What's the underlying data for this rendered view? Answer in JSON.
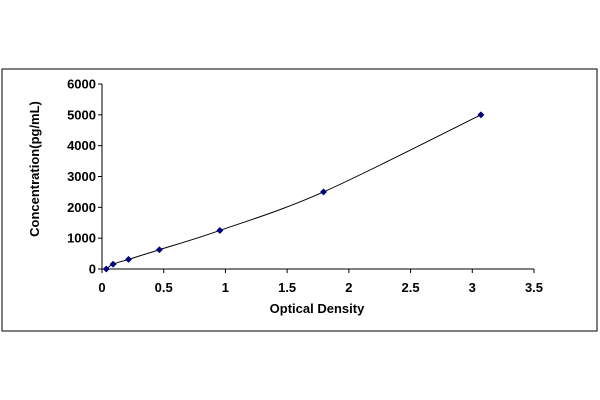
{
  "chart_data": {
    "type": "scatter",
    "title": "",
    "xlabel": "Optical Density",
    "ylabel": "Concentration(pg/mL)",
    "xlim": [
      0,
      3.5
    ],
    "ylim": [
      0,
      6000
    ],
    "x_ticks": [
      "0",
      "0.5",
      "1",
      "1.5",
      "2",
      "2.5",
      "3",
      "3.5"
    ],
    "y_ticks": [
      "0",
      "1000",
      "2000",
      "3000",
      "4000",
      "5000",
      "6000"
    ],
    "grid": false,
    "legend": "none",
    "series": [
      {
        "x": [
          0.035,
          0.09,
          0.215,
          0.465,
          0.955,
          1.795,
          3.07
        ],
        "y": [
          0,
          156,
          312,
          625,
          1250,
          2500,
          5000
        ],
        "marker": "diamond",
        "trendline": true,
        "color": "#000080"
      }
    ],
    "colors": {
      "frame": "#000000",
      "axis": "#000000",
      "marker": "#000080",
      "curve": "#000000"
    }
  }
}
